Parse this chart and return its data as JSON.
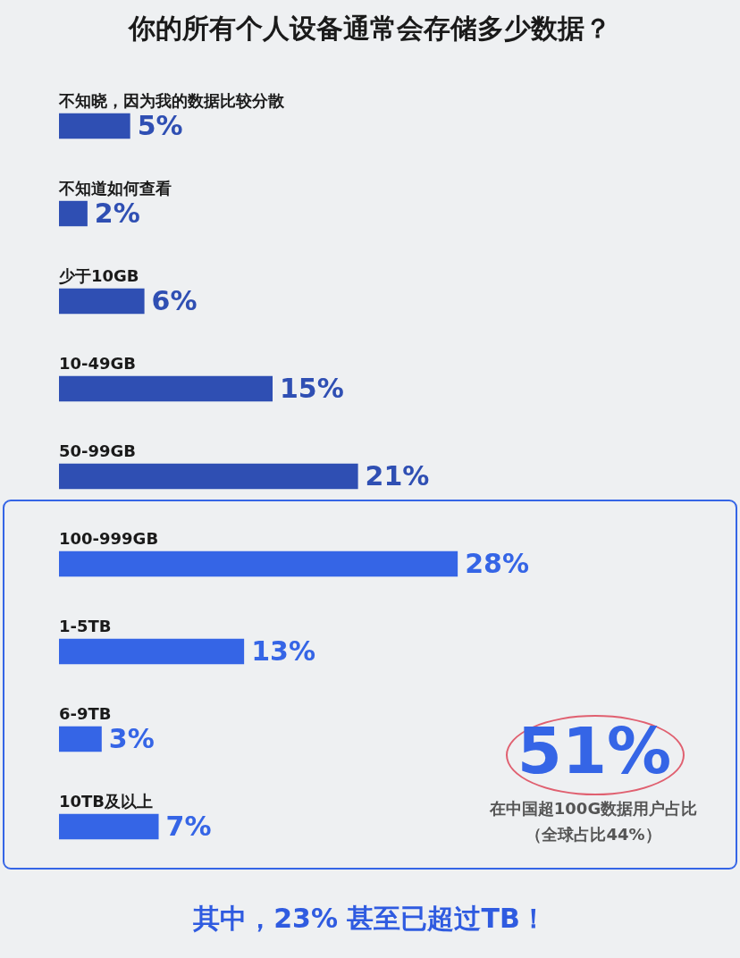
{
  "chart_data": {
    "type": "bar",
    "orientation": "horizontal",
    "title": "你的所有个人设备通常会存储多少数据？",
    "categories": [
      "不知晓，因为我的数据比较分散",
      "不知道如何查看",
      "少于10GB",
      "10-49GB",
      "50-99GB",
      "100-999GB",
      "1-5TB",
      "6-9TB",
      "10TB及以上"
    ],
    "values": [
      5,
      2,
      6,
      15,
      21,
      28,
      13,
      3,
      7
    ],
    "colors": [
      "#2f4fb3",
      "#2f4fb3",
      "#2f4fb3",
      "#2f4fb3",
      "#2f4fb3",
      "#3565e6",
      "#3565e6",
      "#3565e6",
      "#3565e6"
    ],
    "value_labels": [
      "5%",
      "2%",
      "6%",
      "15%",
      "21%",
      "28%",
      "13%",
      "3%",
      "7%"
    ],
    "annotations": [
      "51%",
      "在中国超100G数据用户占比",
      "（全球占比44%）",
      "其中，23% 甚至已超过TB！"
    ]
  }
}
